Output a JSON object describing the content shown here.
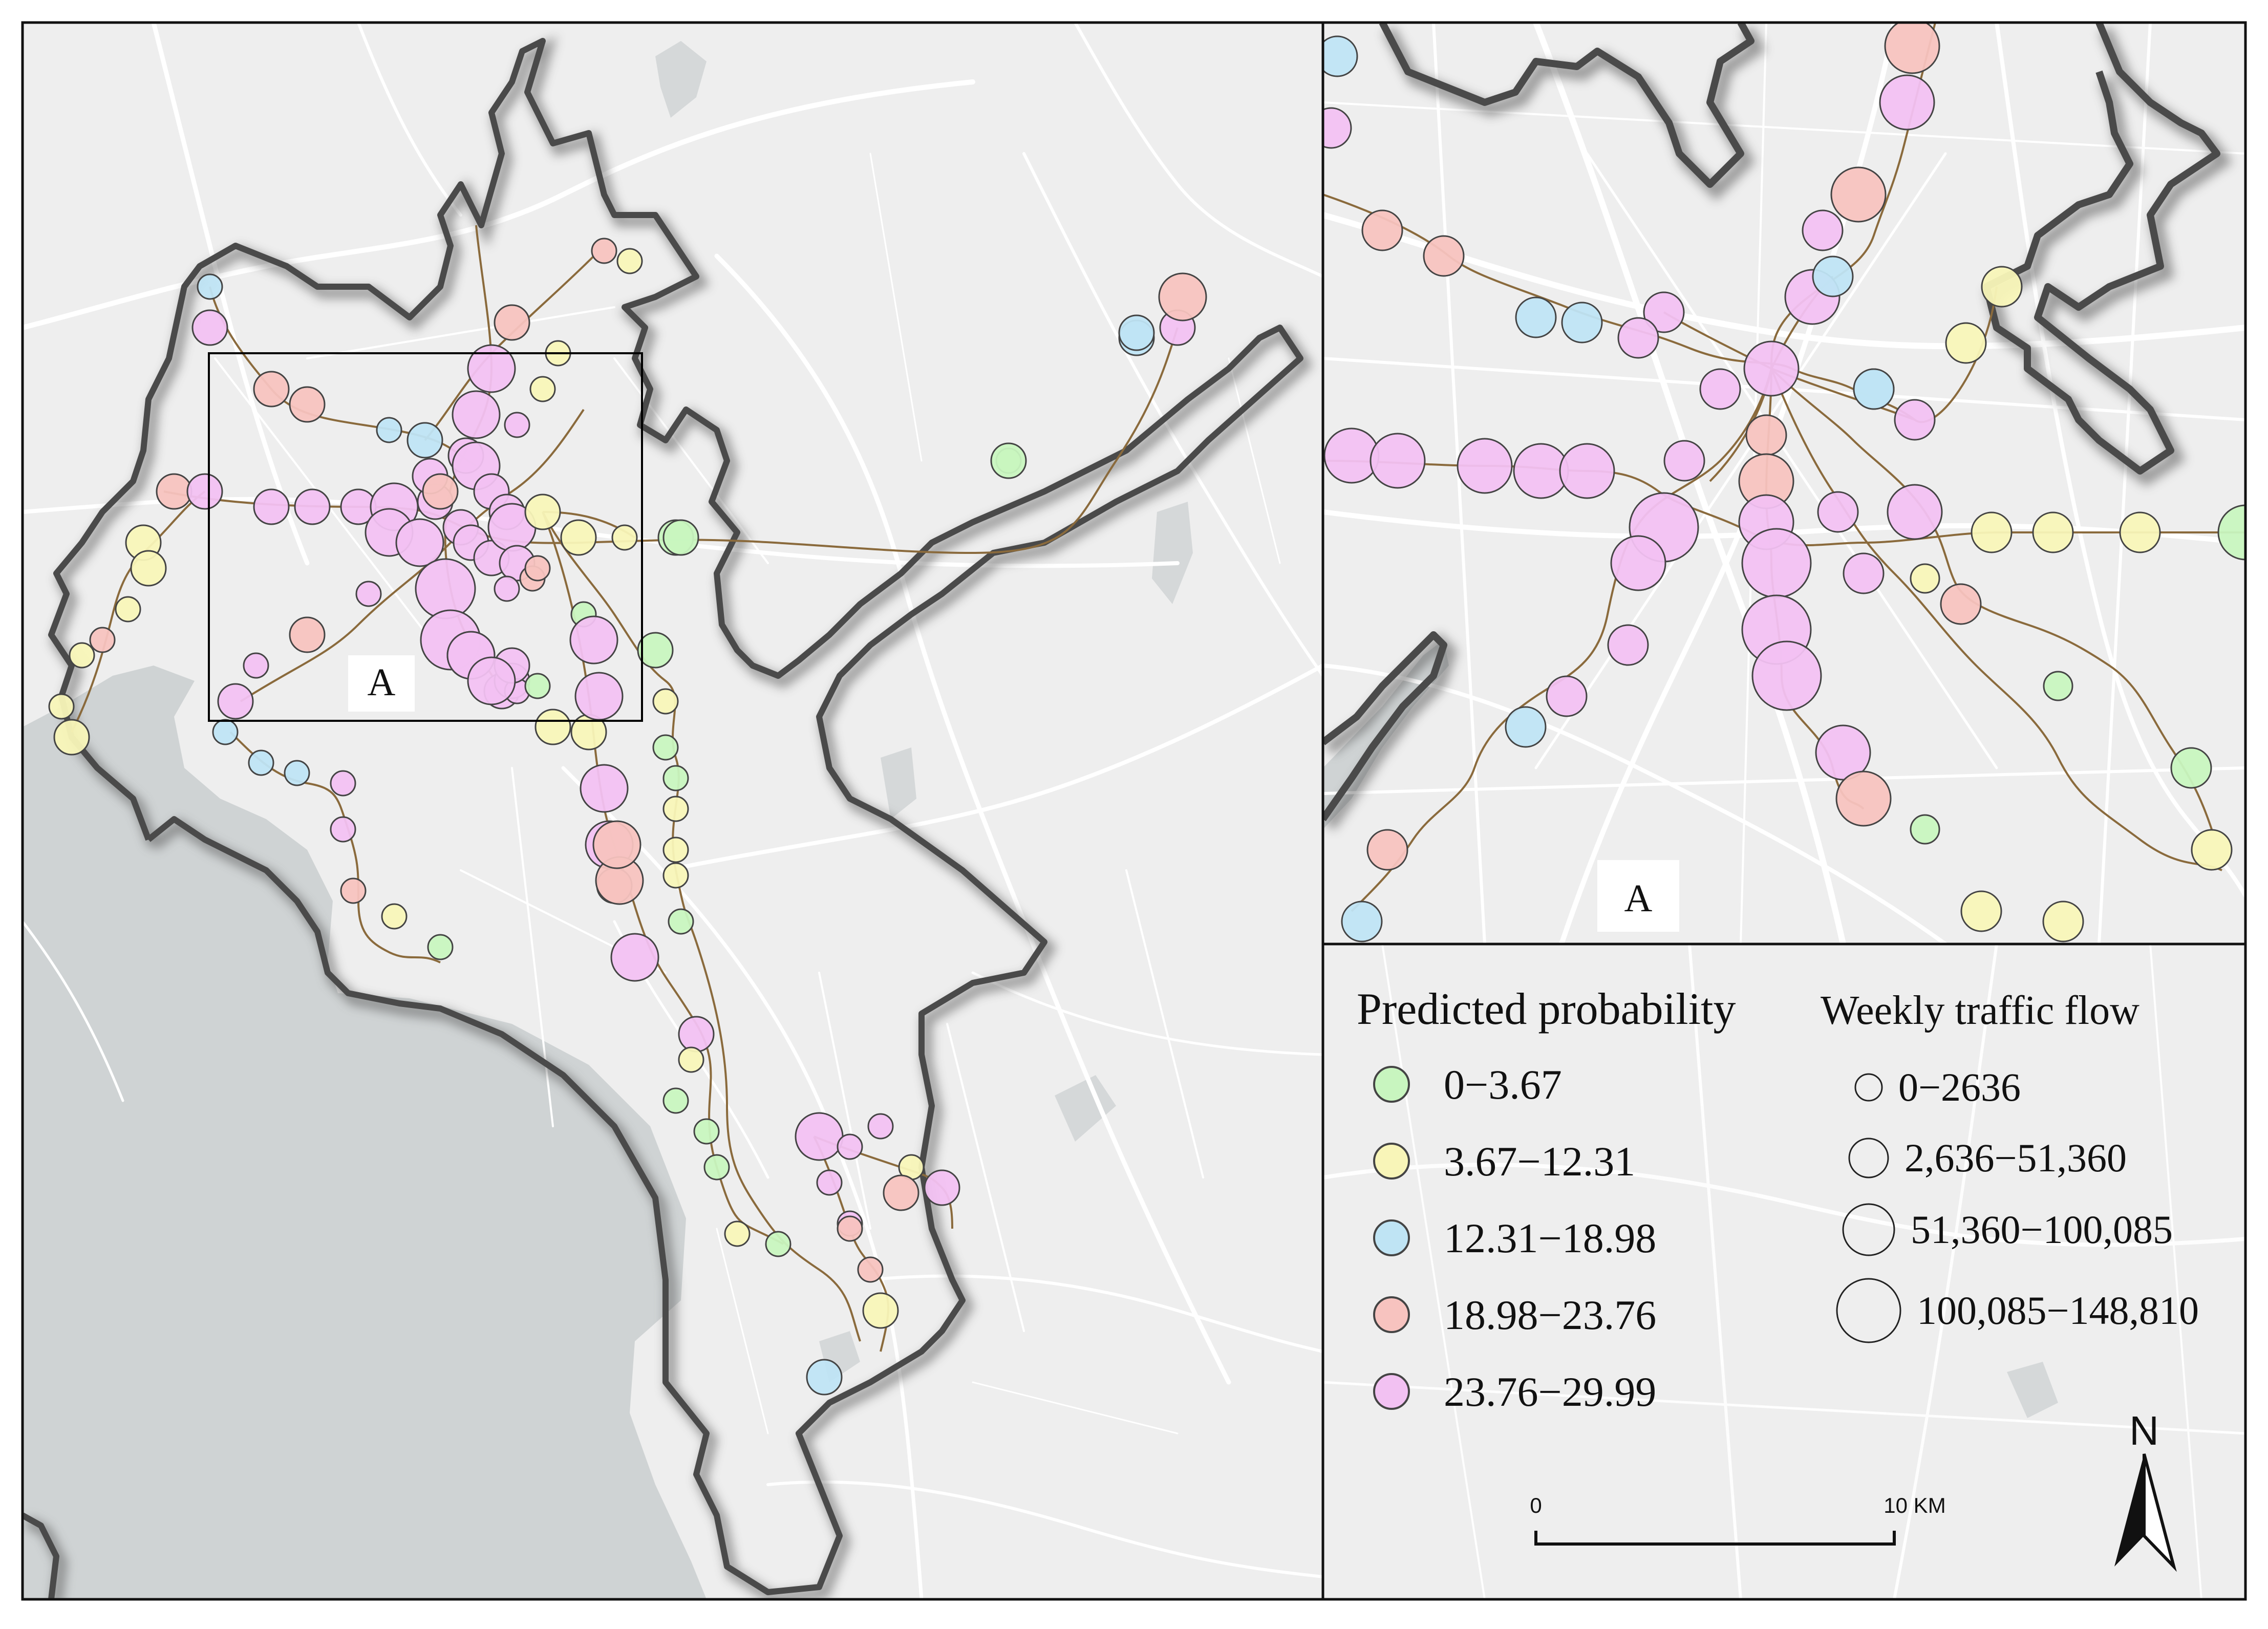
{
  "legend": {
    "probability_title": "Predicted probability",
    "flow_title": "Weekly traffic flow",
    "probability_classes": [
      {
        "label": "0−3.67",
        "color": "#c8f5bf"
      },
      {
        "label": "3.67−12.31",
        "color": "#f8f5b8"
      },
      {
        "label": "12.31−18.98",
        "color": "#bfe4f4"
      },
      {
        "label": "18.98−23.76",
        "color": "#f7c3bf"
      },
      {
        "label": "23.76−29.99",
        "color": "#f2c1f2"
      }
    ],
    "flow_classes": [
      {
        "label": "0−2636",
        "size_rank": 1
      },
      {
        "label": "2,636−51,360",
        "size_rank": 2
      },
      {
        "label": "51,360−100,085",
        "size_rank": 3
      },
      {
        "label": "100,085−148,810",
        "size_rank": 4
      }
    ]
  },
  "inset_label_main": "A",
  "inset_label_zoom": "A",
  "north_arrow": {
    "label": "N"
  },
  "scale_bar": {
    "start_label": "0",
    "end_label": "10 KM"
  },
  "colors": {
    "background": "#eeeeee",
    "water": "#cfd3d4",
    "roads": "#ffffff",
    "boundary": "#444444",
    "metro_line": "#8a6a3c"
  }
}
